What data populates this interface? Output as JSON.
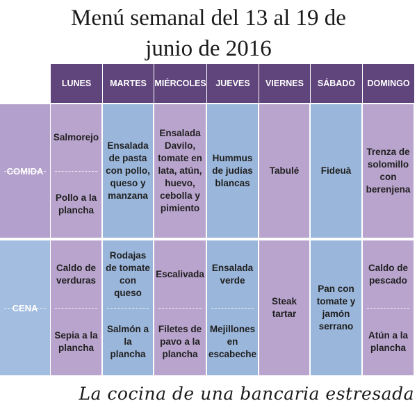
{
  "title": {
    "line1": "Menú semanal del 13 al 19 de",
    "line2": "junio de 2016"
  },
  "days": [
    "LUNES",
    "MARTES",
    "MIÉRCOLES",
    "JUEVES",
    "VIERNES",
    "SÁBADO",
    "DOMINGO"
  ],
  "rows": {
    "comida": {
      "label": "COMIDA",
      "cells": [
        {
          "top": "Salmorejo",
          "bottom": "Pollo a la plancha"
        },
        {
          "single": "Ensalada de pasta con pollo, queso y manzana"
        },
        {
          "single": "Ensalada Davilo, tomate en lata, atún, huevo, cebolla y pimiento"
        },
        {
          "single": "Hummus de judías blancas"
        },
        {
          "single": "Tabulé"
        },
        {
          "single": "Fideuà"
        },
        {
          "single": "Trenza de solomillo con berenjena"
        }
      ]
    },
    "cena": {
      "label": "CENA",
      "cells": [
        {
          "top": "Caldo de verduras",
          "bottom": "Sepia a la plancha"
        },
        {
          "top": "Rodajas de tomate con queso",
          "bottom": "Salmón a la plancha"
        },
        {
          "top": "Escalivada",
          "bottom": "Filetes de pavo a la plancha"
        },
        {
          "top": "Ensalada verde",
          "bottom": "Mejillones en escabeche"
        },
        {
          "single": "Steak tartar"
        },
        {
          "single": "Pan con tomate y jamón serrano"
        },
        {
          "top": "Caldo de pescado",
          "bottom": "Atún a la plancha"
        }
      ]
    }
  },
  "signature": "La cocina de una bancaria estresada",
  "colors": {
    "header": "#60457c",
    "lavender": "#b9a4cd",
    "blue": "#9ab6da",
    "rowlabel_comida": "#b4a0cc",
    "rowlabel_cena": "#a3bde0"
  }
}
